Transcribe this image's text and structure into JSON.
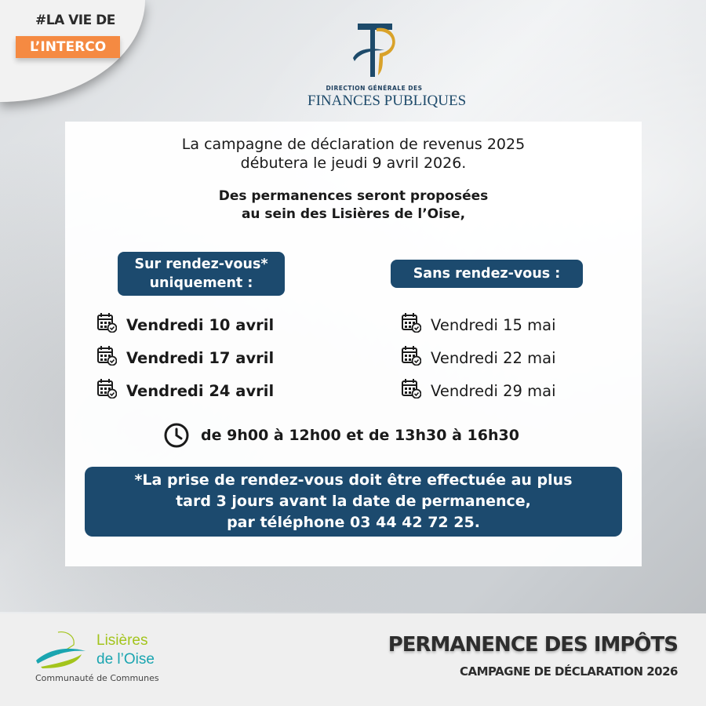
{
  "badge": {
    "line1": "#LA VIE DE",
    "line2": "L’INTERCO",
    "color": "#f58a42"
  },
  "logo": {
    "monogram": "FP",
    "line1": "DIRECTION GÉNÉRALE DES",
    "line2": "FINANCES PUBLIQUES"
  },
  "intro": {
    "line1": "La campagne de déclaration de revenus 2025",
    "line2": "débutera le jeudi 9 avril 2026.",
    "line3": "Des permanences seront proposées",
    "line4": "au sein des Lisières de l’Oise,"
  },
  "with_appointment": {
    "label1": "Sur rendez-vous*",
    "label2": "uniquement :",
    "dates": [
      "Vendredi 10 avril",
      "Vendredi 17 avril",
      "Vendredi 24 avril"
    ]
  },
  "without_appointment": {
    "label": "Sans rendez-vous :",
    "dates": [
      "Vendredi 15 mai",
      "Vendredi 22 mai",
      "Vendredi 29 mai"
    ]
  },
  "hours": "de 9h00 à 12h00 et de 13h30 à 16h30",
  "note": {
    "line1": "*La prise de rendez-vous doit être effectuée au plus",
    "line2": "tard 3 jours avant la date de permanence,",
    "line3": "par téléphone 03 44 42 72 25."
  },
  "footer": {
    "org_line1": "Lisières",
    "org_line2": "de l’Oise",
    "org_line3": "Communauté de Communes",
    "title": "PERMANENCE DES IMPÔTS",
    "subtitle": "CAMPAGNE DE DÉCLARATION 2026"
  },
  "colors": {
    "navy": "#1c4a6e",
    "gold": "#d9a22a"
  }
}
